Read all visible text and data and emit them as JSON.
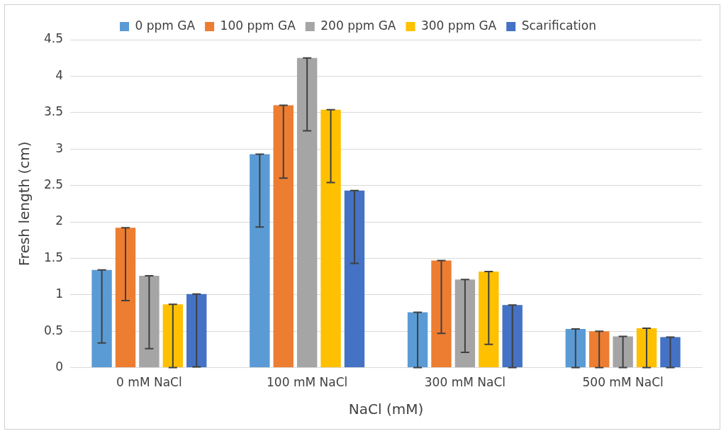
{
  "chart_data": {
    "type": "bar",
    "xlabel": "NaCl (mM)",
    "ylabel": "Fresh length (cm)",
    "categories": [
      "0 mM NaCl",
      "100 mM NaCl",
      "300 mM NaCl",
      "500 mM NaCl"
    ],
    "series": [
      {
        "name": "0 ppm GA",
        "color": "#5b9bd5",
        "values": [
          1.34,
          2.93,
          0.76,
          0.53
        ],
        "errors": [
          [
            0.34,
            1.34
          ],
          [
            1.93,
            2.93
          ],
          [
            0,
            0.76
          ],
          [
            0,
            0.53
          ]
        ]
      },
      {
        "name": "100 ppm GA",
        "color": "#ed7d31",
        "values": [
          1.92,
          3.6,
          1.47,
          0.5
        ],
        "errors": [
          [
            0.92,
            1.92
          ],
          [
            2.6,
            3.6
          ],
          [
            0.47,
            1.47
          ],
          [
            0,
            0.5
          ]
        ]
      },
      {
        "name": "200 ppm GA",
        "color": "#a5a5a5",
        "values": [
          1.26,
          4.25,
          1.21,
          0.43
        ],
        "errors": [
          [
            0.26,
            1.26
          ],
          [
            3.25,
            4.25
          ],
          [
            0.21,
            1.21
          ],
          [
            0,
            0.43
          ]
        ]
      },
      {
        "name": "300 ppm GA",
        "color": "#ffc000",
        "values": [
          0.87,
          3.54,
          1.32,
          0.54
        ],
        "errors": [
          [
            0,
            0.87
          ],
          [
            2.54,
            3.54
          ],
          [
            0.32,
            1.32
          ],
          [
            0,
            0.54
          ]
        ]
      },
      {
        "name": "Scarification",
        "color": "#4472c4",
        "values": [
          1.01,
          2.43,
          0.86,
          0.42
        ],
        "errors": [
          [
            0.01,
            1.01
          ],
          [
            1.43,
            2.43
          ],
          [
            0,
            0.86
          ],
          [
            0,
            0.42
          ]
        ]
      }
    ],
    "ylim": [
      0,
      4.5
    ],
    "yticks": [
      0,
      0.5,
      1,
      1.5,
      2,
      2.5,
      3,
      3.5,
      4,
      4.5
    ],
    "grid": "y",
    "legend": "top"
  }
}
